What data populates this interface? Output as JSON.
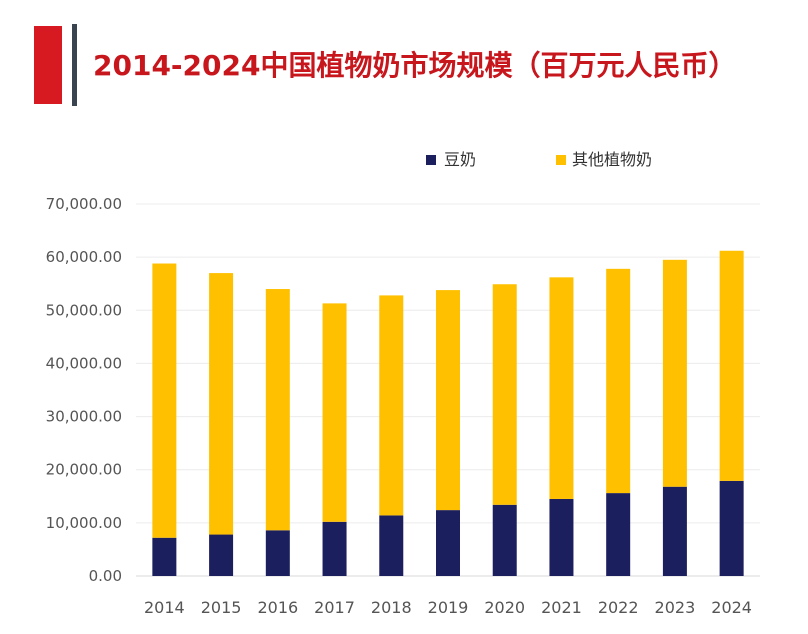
{
  "header": {
    "title": "2014-2024中国植物奶市场规模（百万元人民币）"
  },
  "colors": {
    "accent_red": "#d71a21",
    "title_red": "#c8161d",
    "series_soy": "#1b1f5e",
    "series_other": "#ffc000"
  },
  "chart_data": {
    "type": "bar",
    "stacked": true,
    "title": "2014-2024中国植物奶市场规模（百万元人民币）",
    "xlabel": "",
    "ylabel": "",
    "categories": [
      "2014",
      "2015",
      "2016",
      "2017",
      "2018",
      "2019",
      "2020",
      "2021",
      "2022",
      "2023",
      "2024"
    ],
    "series": [
      {
        "name": "豆奶",
        "color": "#1b1f5e",
        "values": [
          7200,
          7800,
          8600,
          10200,
          11400,
          12400,
          13400,
          14500,
          15600,
          16800,
          17900
        ]
      },
      {
        "name": "其他植物奶",
        "color": "#ffc000",
        "values": [
          51600,
          49200,
          45400,
          41100,
          41400,
          41400,
          41500,
          41700,
          42200,
          42700,
          43300
        ]
      }
    ],
    "ylim": [
      0,
      70000
    ],
    "yticks": [
      "0.00",
      "10,000.00",
      "20,000.00",
      "30,000.00",
      "40,000.00",
      "50,000.00",
      "60,000.00",
      "70,000.00"
    ],
    "ytick_values": [
      0,
      10000,
      20000,
      30000,
      40000,
      50000,
      60000,
      70000
    ],
    "grid": true,
    "legend_position": "top-right"
  }
}
